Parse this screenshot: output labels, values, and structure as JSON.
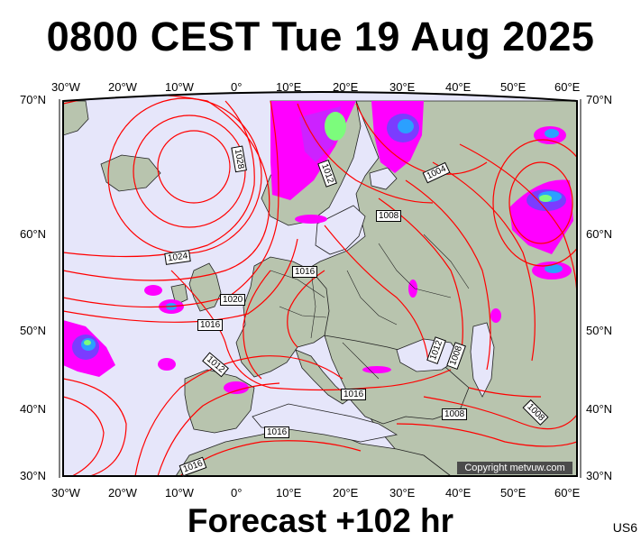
{
  "title": "0800 CEST Tue 19 Aug 2025",
  "footer": "Forecast +102 hr",
  "code": "US6",
  "copyright": "Copyright metvuw.com",
  "lon_ticks": [
    "30°W",
    "20°W",
    "10°W",
    "0°",
    "10°E",
    "20°E",
    "30°E",
    "40°E",
    "50°E",
    "60°E"
  ],
  "lat_ticks": [
    "70°N",
    "60°N",
    "50°N",
    "40°N",
    "30°N"
  ],
  "isobar_labels": [
    "1028",
    "1024",
    "1020",
    "1016",
    "1012",
    "1016",
    "1012",
    "1008",
    "1004",
    "1016",
    "1012",
    "1008",
    "1016",
    "1008",
    "1008",
    "1012",
    "1016"
  ],
  "map": {
    "lon_range": [
      -30,
      60
    ],
    "lat_range": [
      30,
      70
    ],
    "projection": "polar stereographic",
    "colors": {
      "sea": "#e6e6fa",
      "land": "#b8c4ae",
      "isobar": "#ff0000",
      "precip_light": "#ff00ff",
      "precip_medium": "#7b3cff",
      "precip_heavy": "#2ba0ff",
      "precip_peak": "#7cfc7c"
    }
  }
}
